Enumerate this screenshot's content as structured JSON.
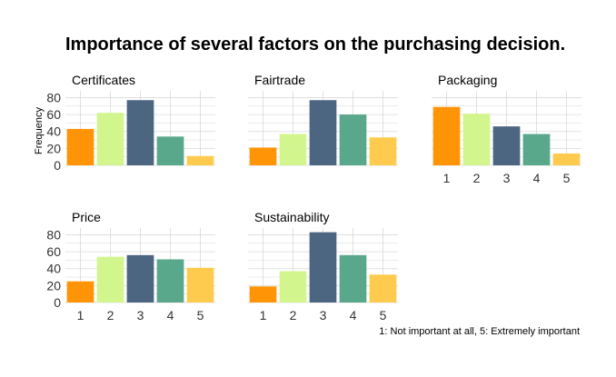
{
  "chart_data": {
    "type": "bar",
    "title": "Importance of several factors on the purchasing decision.",
    "ylabel": "Frequency",
    "caption": "1: Not important at all, 5: Extremely important",
    "categories": [
      "1",
      "2",
      "3",
      "4",
      "5"
    ],
    "yticks": [
      "0",
      "20",
      "40",
      "60",
      "80"
    ],
    "ylim": [
      0,
      88
    ],
    "grid": true,
    "colors": [
      "#FF9506",
      "#D2F58D",
      "#4C6580",
      "#59A88C",
      "#FFCB4F"
    ],
    "grid_color": "#D9D9D9",
    "facets": [
      {
        "name": "Certificates",
        "values": [
          43,
          62,
          77,
          34,
          11
        ]
      },
      {
        "name": "Fairtrade",
        "values": [
          21,
          37,
          77,
          60,
          33
        ]
      },
      {
        "name": "Packaging",
        "values": [
          69,
          61,
          46,
          37,
          14
        ]
      },
      {
        "name": "Price",
        "values": [
          25,
          54,
          56,
          51,
          41
        ]
      },
      {
        "name": "Sustainability",
        "values": [
          19,
          37,
          83,
          56,
          33
        ]
      }
    ]
  }
}
